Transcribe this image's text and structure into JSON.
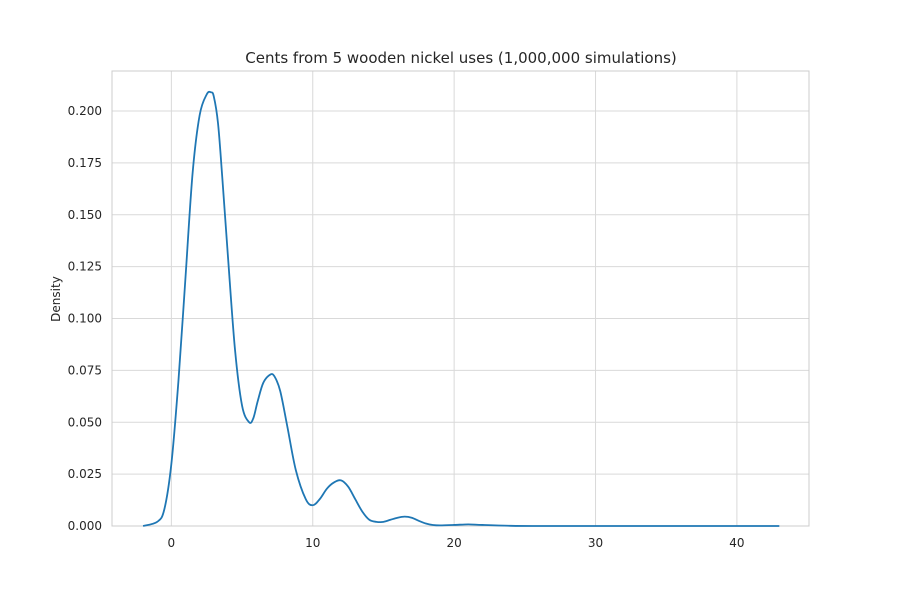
{
  "chart_data": {
    "type": "line",
    "title": "Cents from 5 wooden nickel uses (1,000,000 simulations)",
    "xlabel": "",
    "ylabel": "Density",
    "xlim": [
      -4.2,
      45.1
    ],
    "ylim": [
      0.0,
      0.2
    ],
    "xticks": [
      0,
      10,
      20,
      30,
      40
    ],
    "xtick_labels": [
      "0",
      "10",
      "20",
      "30",
      "40"
    ],
    "yticks": [
      0.0,
      0.025,
      0.05,
      0.075,
      0.1,
      0.125,
      0.15,
      0.175,
      0.2
    ],
    "ytick_labels": [
      "0.000",
      "0.025",
      "0.050",
      "0.075",
      "0.100",
      "0.125",
      "0.150",
      "0.175",
      "0.200"
    ],
    "grid": true,
    "legend": "none",
    "series_color": "#1f77b4",
    "series": [
      {
        "x": [
          -2.0,
          -1.0,
          -0.5,
          0.0,
          0.5,
          1.0,
          1.5,
          2.0,
          2.5,
          2.8,
          3.0,
          3.3,
          3.6,
          4.0,
          4.5,
          5.0,
          5.5,
          5.8,
          6.1,
          6.5,
          7.0,
          7.3,
          7.7,
          8.2,
          8.8,
          9.5,
          10.0,
          10.5,
          11.0,
          11.5,
          12.0,
          12.5,
          13.0,
          13.5,
          14.0,
          14.5,
          15.0,
          15.5,
          16.0,
          16.5,
          17.0,
          17.5,
          18.0,
          18.5,
          19.0,
          20.0,
          21.0,
          22.0,
          24.0,
          26.0,
          30.0,
          35.0,
          40.0,
          43.0
        ],
        "y": [
          0.0,
          0.002,
          0.008,
          0.03,
          0.07,
          0.12,
          0.17,
          0.198,
          0.208,
          0.209,
          0.207,
          0.194,
          0.168,
          0.13,
          0.085,
          0.058,
          0.05,
          0.052,
          0.06,
          0.069,
          0.073,
          0.072,
          0.065,
          0.048,
          0.027,
          0.013,
          0.01,
          0.013,
          0.018,
          0.021,
          0.022,
          0.019,
          0.013,
          0.007,
          0.003,
          0.002,
          0.002,
          0.003,
          0.004,
          0.0045,
          0.004,
          0.0025,
          0.0012,
          0.0005,
          0.0003,
          0.0005,
          0.0008,
          0.0005,
          0.0001,
          0.0,
          0.0,
          0.0,
          0.0,
          0.0
        ]
      }
    ]
  }
}
